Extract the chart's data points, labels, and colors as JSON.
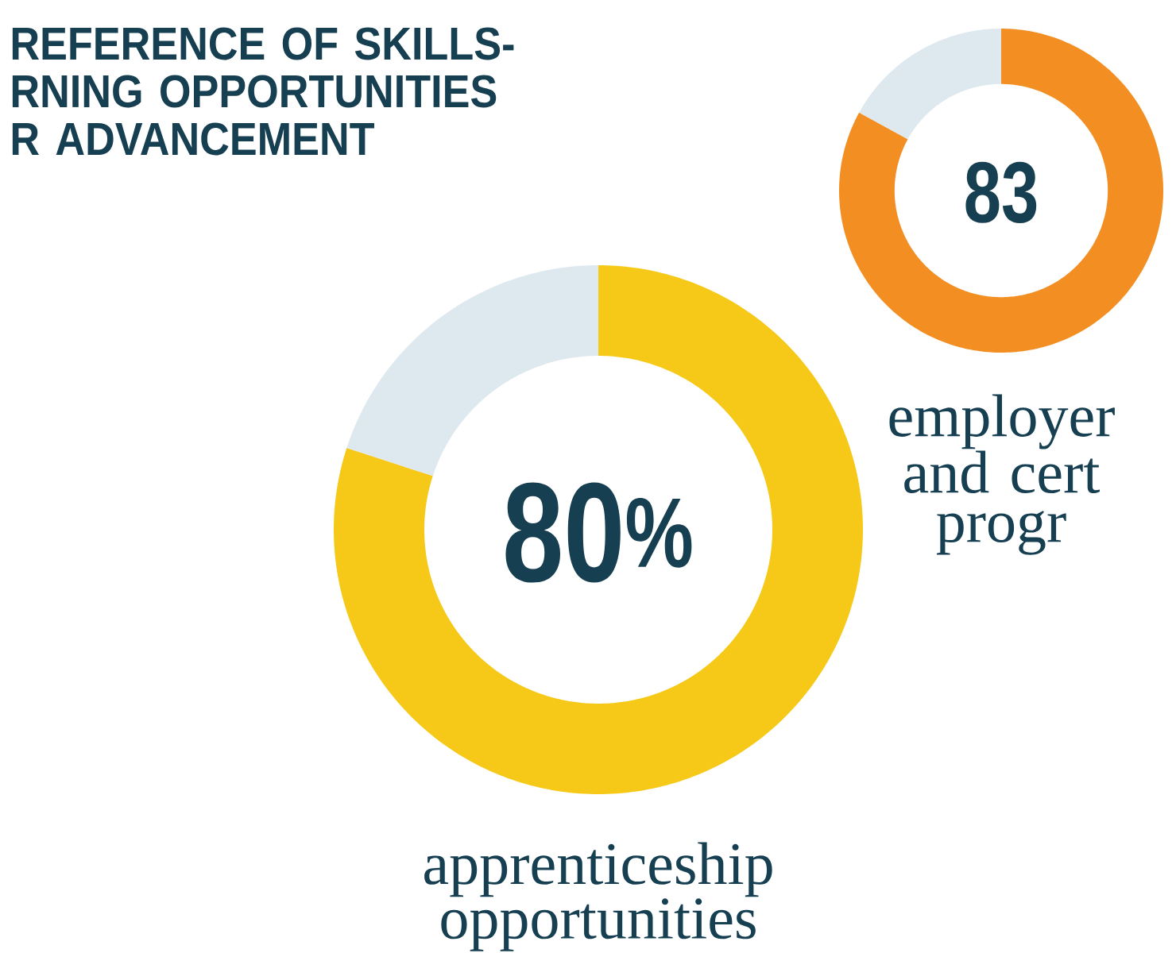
{
  "chart_data": [
    {
      "type": "donut",
      "title": "REFERENCE OF SKILLS- RNING OPPORTUNITIES R ADVANCEMENT",
      "categories": [
        "apprenticeship opportunities",
        null
      ],
      "values": [
        80,
        20
      ],
      "colors": [
        "#f6c918",
        "#dde8ef"
      ],
      "value_labels": [
        "80$^{%}$",
        null
      ]
    },
    {
      "type": "donut",
      "categories": [
        "employer and cert progr",
        null
      ],
      "values": [
        83,
        17
      ],
      "colors": [
        "#f38f22",
        "#dde8ef"
      ],
      "value_labels": [
        "83",
        null
      ]
    }
  ]
}
